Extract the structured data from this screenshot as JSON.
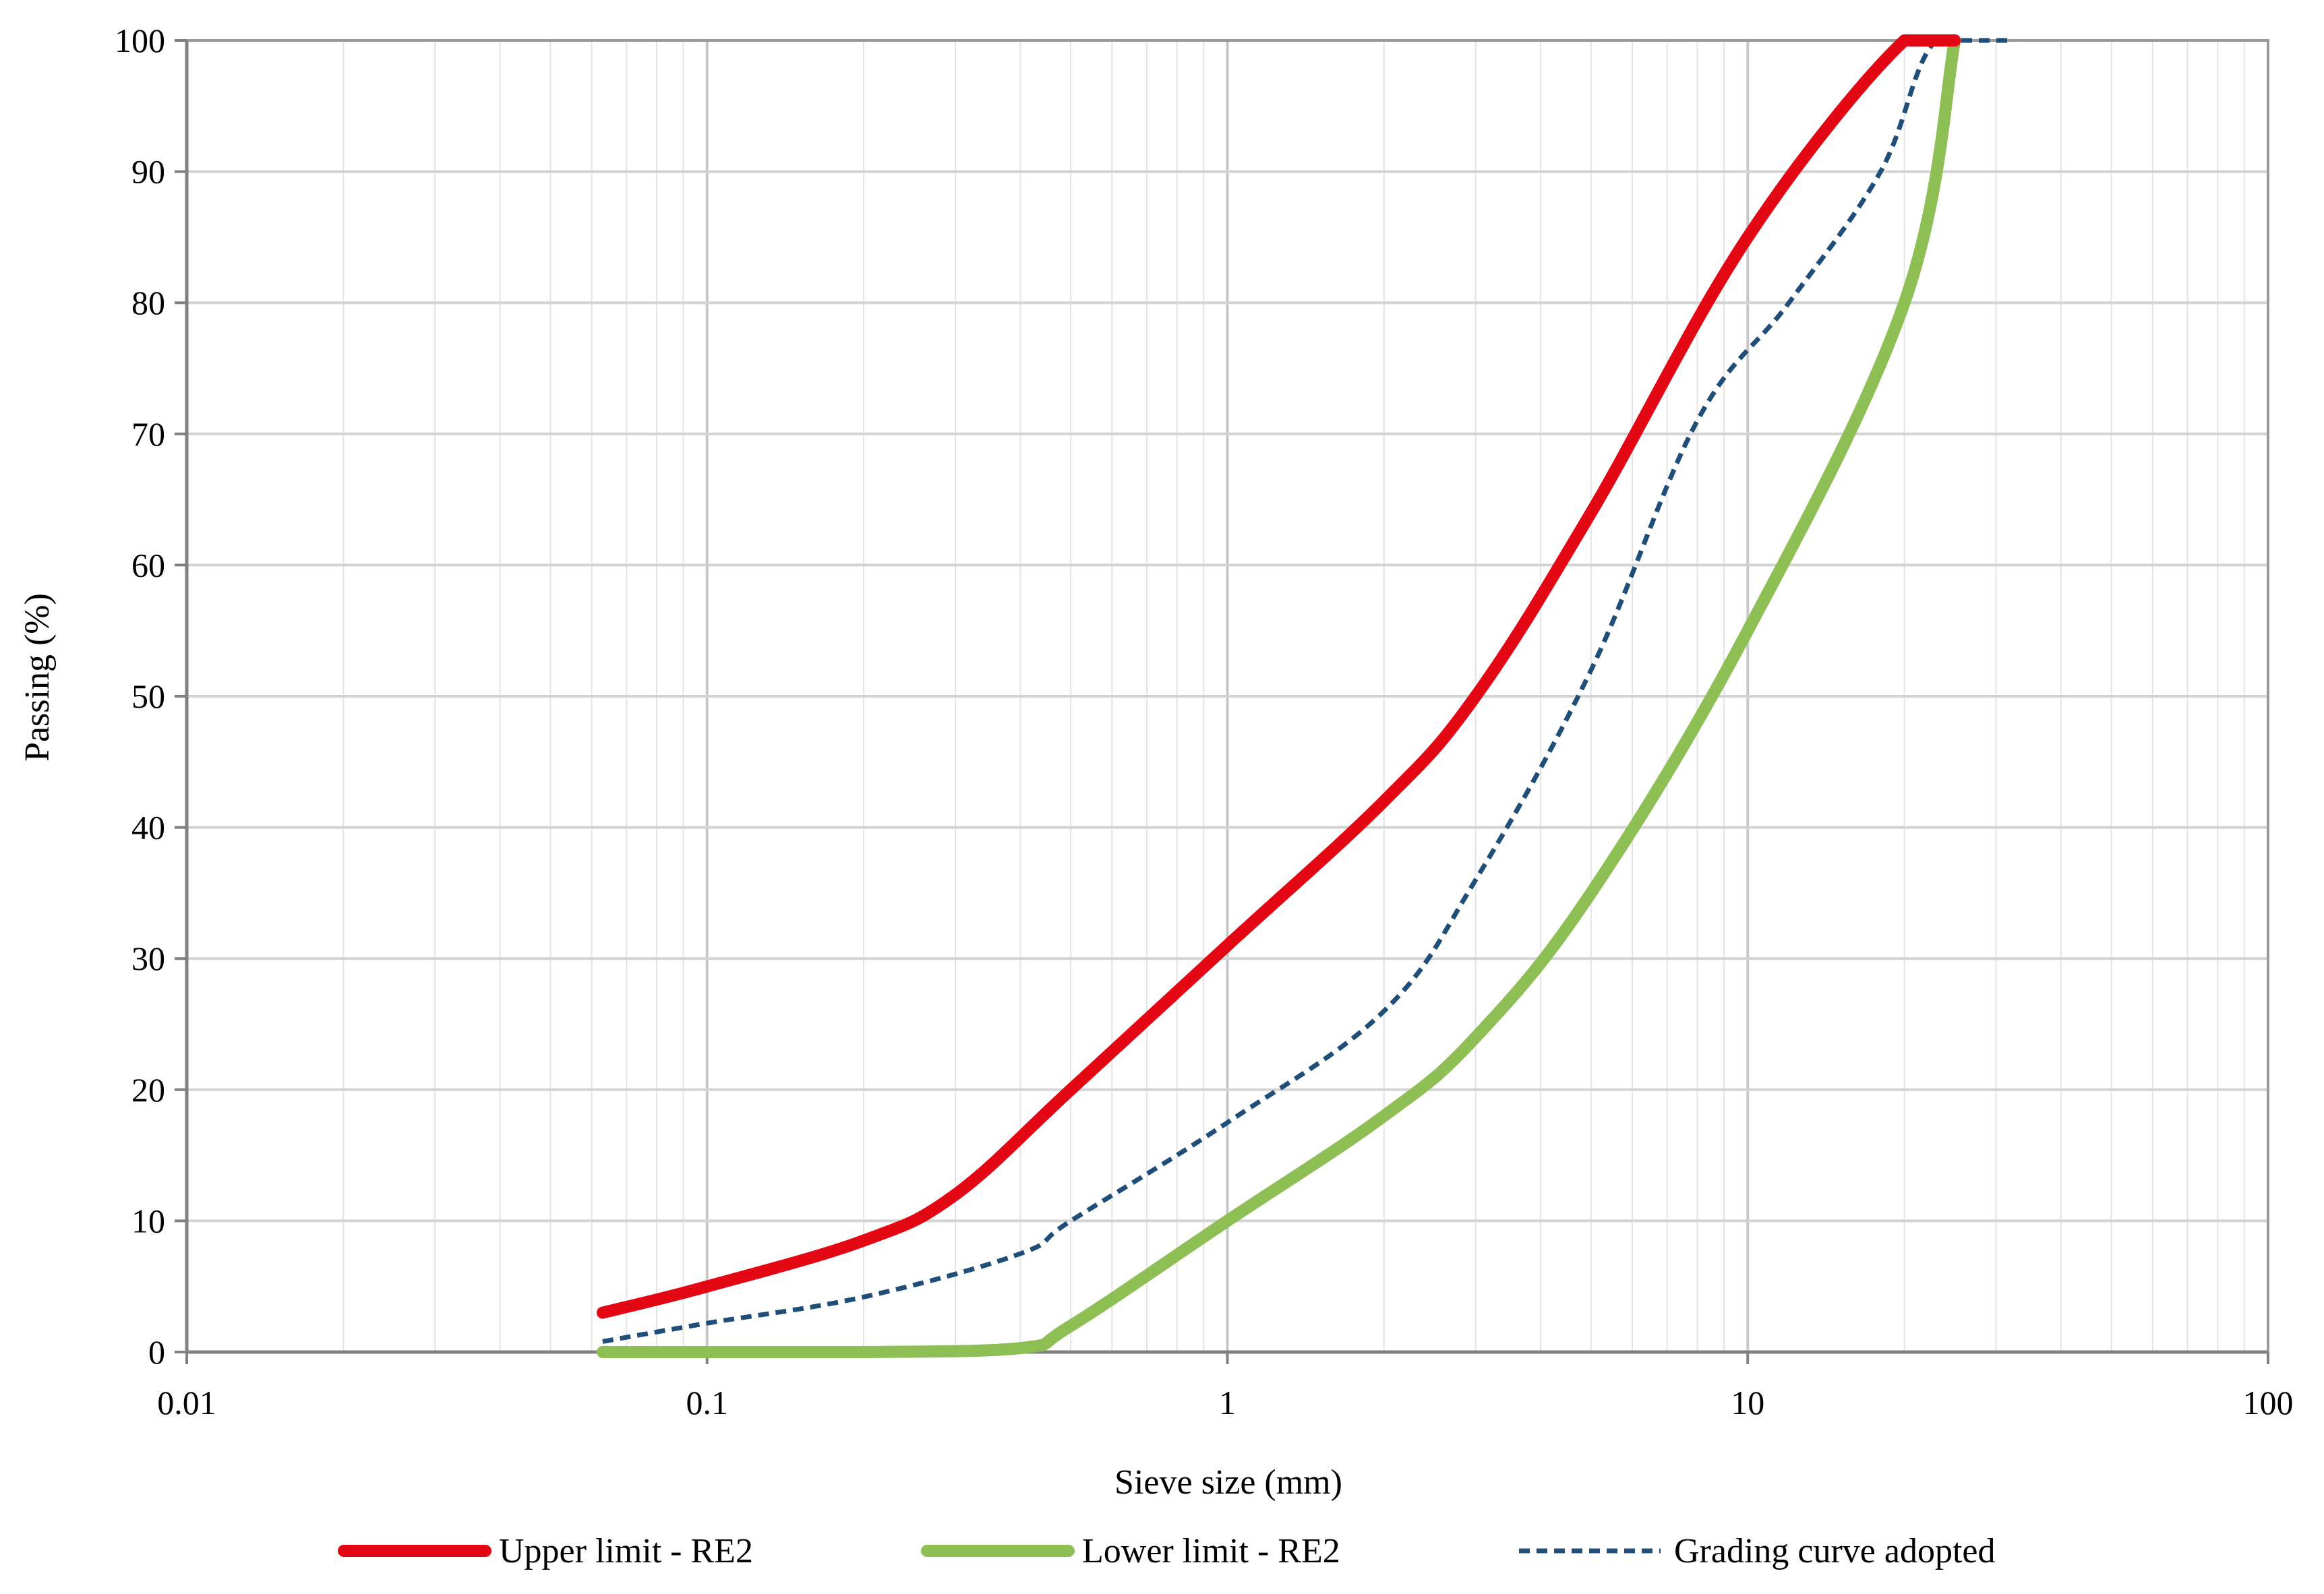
{
  "chart_data": {
    "type": "line",
    "xlabel": "Sieve size (mm)",
    "ylabel": "Passing (%)",
    "x_scale": "log",
    "xlim": [
      0.01,
      100
    ],
    "ylim": [
      0,
      100
    ],
    "x_ticks": [
      "0.01",
      "0.1",
      "1",
      "10",
      "100"
    ],
    "y_ticks": [
      "0",
      "10",
      "20",
      "30",
      "40",
      "50",
      "60",
      "70",
      "80",
      "90",
      "100"
    ],
    "grid": true,
    "legend_position": "bottom",
    "series": [
      {
        "name": "Upper limit - RE2",
        "color": "#e30613",
        "style": "solid",
        "points": [
          [
            0.063,
            3
          ],
          [
            0.1,
            5
          ],
          [
            0.2,
            8.5
          ],
          [
            0.3,
            12
          ],
          [
            0.5,
            20
          ],
          [
            1,
            31
          ],
          [
            2,
            42
          ],
          [
            3,
            50
          ],
          [
            5,
            64
          ],
          [
            10,
            85
          ],
          [
            20,
            100
          ],
          [
            25,
            100
          ]
        ]
      },
      {
        "name": "Lower limit - RE2",
        "color": "#8dbf55",
        "style": "solid",
        "points": [
          [
            0.063,
            0
          ],
          [
            0.1,
            0
          ],
          [
            0.2,
            0
          ],
          [
            0.4,
            0.3
          ],
          [
            0.5,
            2
          ],
          [
            1,
            10
          ],
          [
            2,
            18
          ],
          [
            3,
            24
          ],
          [
            5,
            35
          ],
          [
            10,
            55
          ],
          [
            20,
            80
          ],
          [
            25,
            100
          ]
        ]
      },
      {
        "name": "Grading curve adopted",
        "color": "#1f4e79",
        "style": "dashed",
        "points": [
          [
            0.063,
            0.8
          ],
          [
            0.1,
            2.2
          ],
          [
            0.2,
            4.2
          ],
          [
            0.4,
            7.5
          ],
          [
            0.5,
            10
          ],
          [
            1,
            17.5
          ],
          [
            2,
            26
          ],
          [
            3,
            36
          ],
          [
            5,
            52
          ],
          [
            8,
            71
          ],
          [
            12,
            80
          ],
          [
            18,
            90
          ],
          [
            23,
            100
          ],
          [
            32,
            100
          ]
        ]
      }
    ]
  }
}
